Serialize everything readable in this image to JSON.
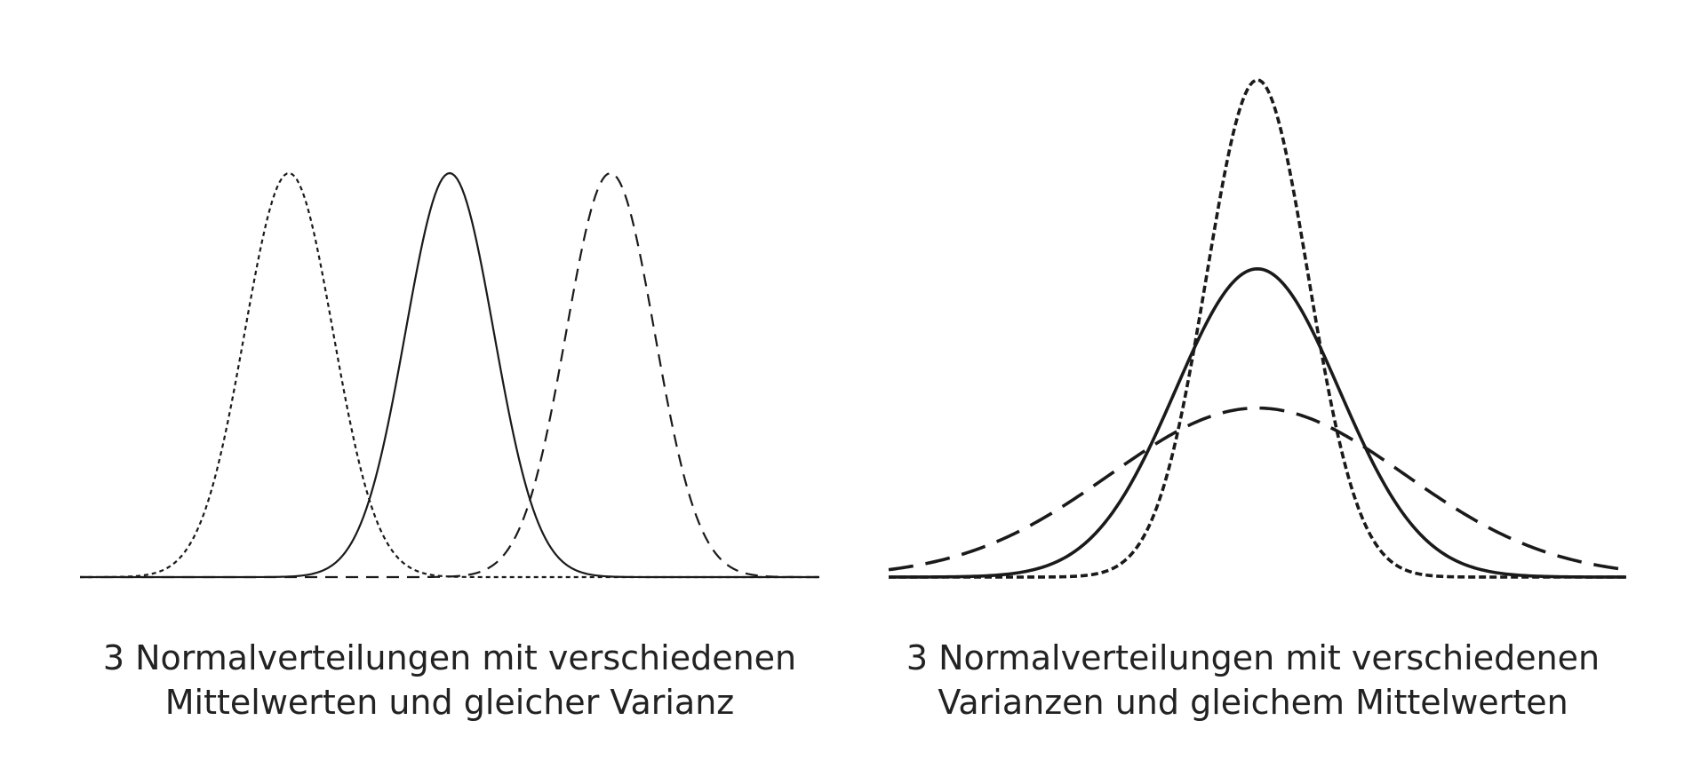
{
  "colors": {
    "line": "#1a1a1a",
    "background": "#ffffff",
    "text": "#222222"
  },
  "chart_data": [
    {
      "type": "line",
      "caption": [
        "3 Normalverteilungen mit verschiedenen",
        "Mittelwerten und gleicher Varianz"
      ],
      "xlim": [
        -4.6,
        4.6
      ],
      "ylim": [
        0,
        1
      ],
      "axes_visible": false,
      "grid": false,
      "series": [
        {
          "mean": -2.0,
          "sd": 0.55,
          "peak": 1.0,
          "style": "dotted"
        },
        {
          "mean": 0.0,
          "sd": 0.55,
          "peak": 1.0,
          "style": "solid"
        },
        {
          "mean": 2.0,
          "sd": 0.55,
          "peak": 1.0,
          "style": "dashed"
        }
      ]
    },
    {
      "type": "line",
      "caption": [
        "3 Normalverteilungen mit verschiedenen",
        "Varianzen und gleichem Mittelwerten"
      ],
      "xlim": [
        -4.5,
        4.5
      ],
      "ylim": [
        0,
        1
      ],
      "axes_visible": false,
      "grid": false,
      "series": [
        {
          "mean": 0,
          "sd": 0.62,
          "peak": 1.0,
          "style": "dotted"
        },
        {
          "mean": 0,
          "sd": 1.0,
          "peak": 0.62,
          "style": "solid"
        },
        {
          "mean": 0,
          "sd": 1.8,
          "peak": 0.34,
          "style": "dashed"
        }
      ]
    }
  ]
}
